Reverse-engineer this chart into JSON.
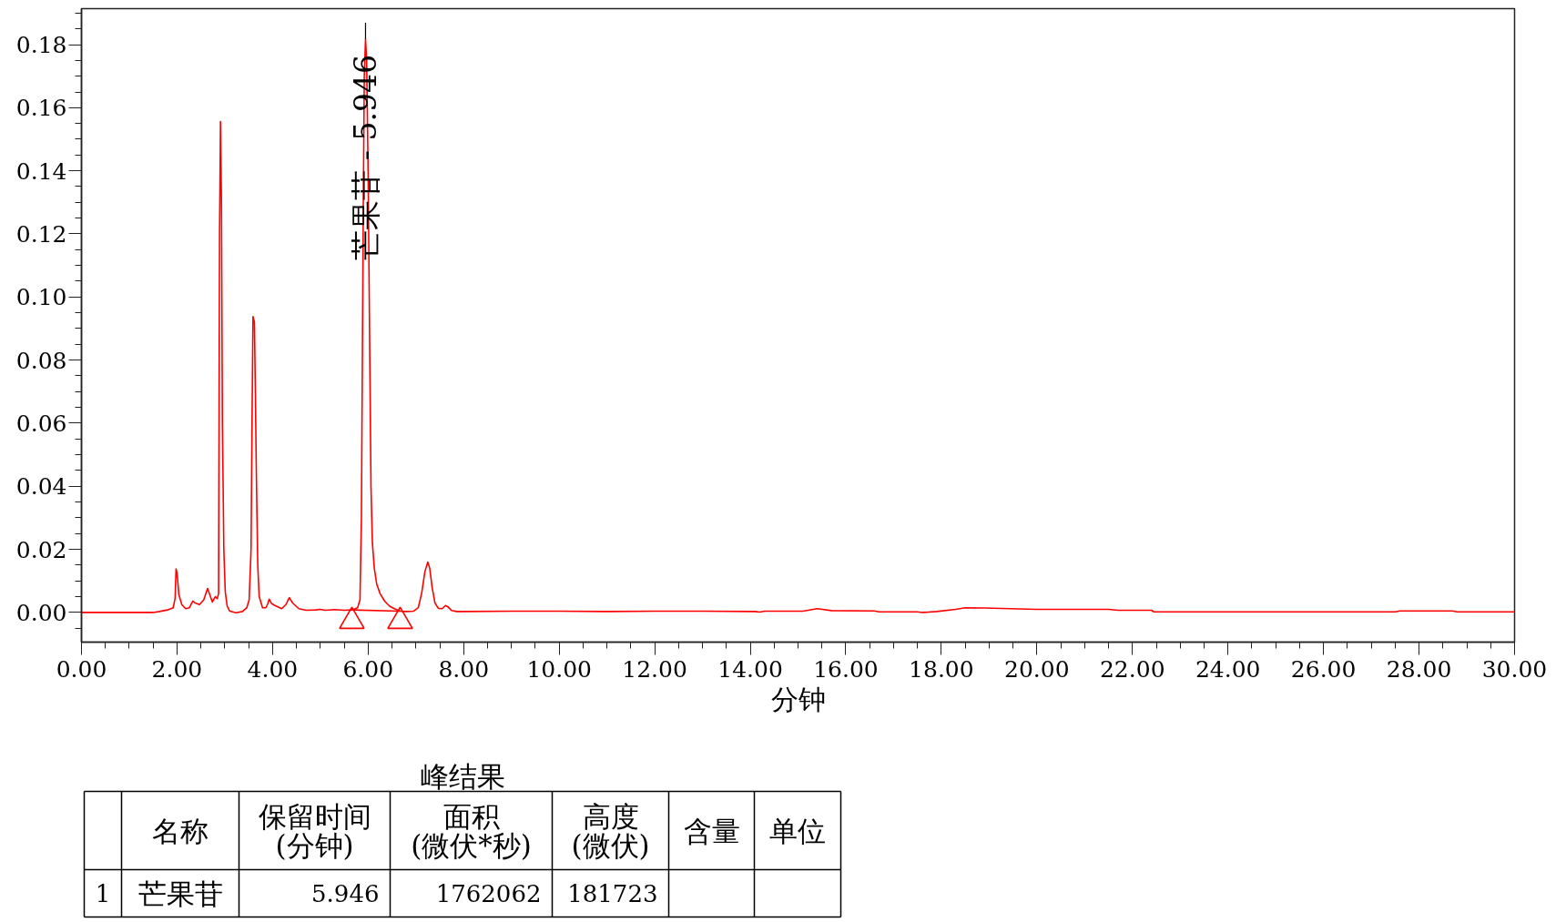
{
  "chart_data": [
    {
      "type": "line",
      "xlabel": "分钟",
      "xlim": [
        0,
        30
      ],
      "ylim": [
        -0.0094,
        0.1914
      ],
      "xticks": [
        {
          "value": 0,
          "label": "0.00"
        },
        {
          "value": 2,
          "label": "2.00"
        },
        {
          "value": 4,
          "label": "4.00"
        },
        {
          "value": 6,
          "label": "6.00"
        },
        {
          "value": 8,
          "label": "8.00"
        },
        {
          "value": 10,
          "label": "10.00"
        },
        {
          "value": 12,
          "label": "12.00"
        },
        {
          "value": 14,
          "label": "14.00"
        },
        {
          "value": 16,
          "label": "16.00"
        },
        {
          "value": 18,
          "label": "18.00"
        },
        {
          "value": 20,
          "label": "20.00"
        },
        {
          "value": 22,
          "label": "22.00"
        },
        {
          "value": 24,
          "label": "24.00"
        },
        {
          "value": 26,
          "label": "26.00"
        },
        {
          "value": 28,
          "label": "28.00"
        },
        {
          "value": 30,
          "label": "30.00"
        }
      ],
      "yticks": [
        {
          "value": 0,
          "label": "0.00"
        },
        {
          "value": 0.02,
          "label": "0.02"
        },
        {
          "value": 0.04,
          "label": "0.04"
        },
        {
          "value": 0.06,
          "label": "0.06"
        },
        {
          "value": 0.08,
          "label": "0.08"
        },
        {
          "value": 0.1,
          "label": "0.10"
        },
        {
          "value": 0.12,
          "label": "0.12"
        },
        {
          "value": 0.14,
          "label": "0.14"
        },
        {
          "value": 0.16,
          "label": "0.16"
        },
        {
          "value": 0.18,
          "label": "0.18"
        }
      ],
      "series": [
        {
          "type": "line",
          "color": "#ff0000",
          "x": [
            0,
            1.5,
            1.63,
            1.8,
            1.92,
            1.96,
            1.98,
            2.0,
            2.04,
            2.1,
            2.18,
            2.26,
            2.33,
            2.38,
            2.47,
            2.56,
            2.64,
            2.7,
            2.74,
            2.8,
            2.84,
            2.87,
            2.89,
            2.91,
            2.93,
            2.95,
            2.98,
            3.01,
            3.05,
            3.1,
            3.23,
            3.37,
            3.46,
            3.51,
            3.55,
            3.57,
            3.59,
            3.62,
            3.64,
            3.66,
            3.69,
            3.72,
            3.79,
            3.86,
            3.9,
            3.93,
            3.98,
            4.05,
            4.19,
            4.28,
            4.35,
            4.42,
            4.55,
            4.7,
            4.9,
            5.0,
            5.1,
            5.3,
            5.5,
            5.66,
            5.78,
            5.83,
            5.86,
            5.88,
            5.9,
            5.92,
            5.946,
            5.97,
            6.0,
            6.03,
            6.06,
            6.09,
            6.13,
            6.18,
            6.25,
            6.35,
            6.45,
            6.55,
            6.67,
            6.8,
            6.95,
            7.05,
            7.12,
            7.19,
            7.25,
            7.29,
            7.34,
            7.4,
            7.47,
            7.55,
            7.62,
            7.67,
            7.75,
            7.85,
            8.0,
            9.0,
            10.0,
            11.0,
            12.0,
            13.0,
            14.1,
            14.2,
            14.3,
            15.1,
            15.4,
            15.7,
            16.6,
            16.7,
            17.5,
            17.6,
            17.9,
            18.3,
            18.5,
            18.9,
            20.0,
            21.5,
            21.7,
            22.4,
            22.45,
            25.0,
            27.5,
            27.6,
            28.7,
            28.8,
            30.0
          ],
          "values": [
            0,
            0,
            0.0003,
            0.0008,
            0.0015,
            0.0045,
            0.0138,
            0.0125,
            0.0055,
            0.0025,
            0.0012,
            0.0015,
            0.0036,
            0.003,
            0.0025,
            0.004,
            0.0076,
            0.005,
            0.0033,
            0.005,
            0.0044,
            0.006,
            0.12,
            0.1556,
            0.13,
            0.06,
            0.02,
            0.0065,
            0.002,
            0.0005,
            -0.0001,
            0.0003,
            0.0015,
            0.004,
            0.02,
            0.06,
            0.0938,
            0.092,
            0.07,
            0.045,
            0.015,
            0.005,
            0.0015,
            0.0015,
            0.0028,
            0.0042,
            0.0028,
            0.0022,
            0.0012,
            0.0025,
            0.0047,
            0.003,
            0.0012,
            0.0007,
            0.0008,
            0.001,
            0.0007,
            0.0009,
            0.0007,
            0.0008,
            0.0015,
            0.004,
            0.03,
            0.08,
            0.13,
            0.17,
            0.1817,
            0.175,
            0.14,
            0.09,
            0.04,
            0.022,
            0.014,
            0.009,
            0.006,
            0.0035,
            0.002,
            0.0012,
            0.0004,
            0.0003,
            0.0004,
            0.0015,
            0.006,
            0.013,
            0.016,
            0.014,
            0.008,
            0.003,
            0.0013,
            0.0012,
            0.0022,
            0.0018,
            0.0006,
            0.0003,
            0.0003,
            0.0004,
            0.0004,
            0.0003,
            0.0004,
            0.0004,
            0.0003,
            0.0001,
            0.0004,
            0.0004,
            0.0012,
            0.0006,
            0.0005,
            0.0002,
            0.0002,
            0.0,
            0.0003,
            0.001,
            0.0015,
            0.0014,
            0.001,
            0.001,
            0.0007,
            0.0007,
            0.0002,
            0.0002,
            0.0002,
            0.0005,
            0.0005,
            0.0002,
            0.0002
          ]
        },
        {
          "type": "line",
          "color": "#ff0000",
          "x": [
            5.66,
            6.67
          ],
          "values": [
            0.0008,
            0.0004
          ]
        },
        {
          "type": "scatter",
          "color": "#ff0000",
          "marker": "triangle",
          "x": [
            5.66,
            6.67
          ],
          "values": [
            -0.0028,
            -0.0028
          ]
        }
      ],
      "annotations": [
        {
          "text": "芒果苷 - 5.946",
          "x": 5.946,
          "y": 0.1817
        }
      ]
    },
    {
      "type": "other",
      "title": "峰结果",
      "categories": [
        "名称",
        "保留时间\n(分钟)",
        "面积\n(微伏*秒)",
        "高度\n(微伏)",
        "含量",
        "单位"
      ],
      "y_categories": [
        "1"
      ],
      "cell_labels": [
        [
          "芒果苷",
          "5.946",
          "1762062",
          "181723",
          null,
          null
        ]
      ]
    }
  ]
}
